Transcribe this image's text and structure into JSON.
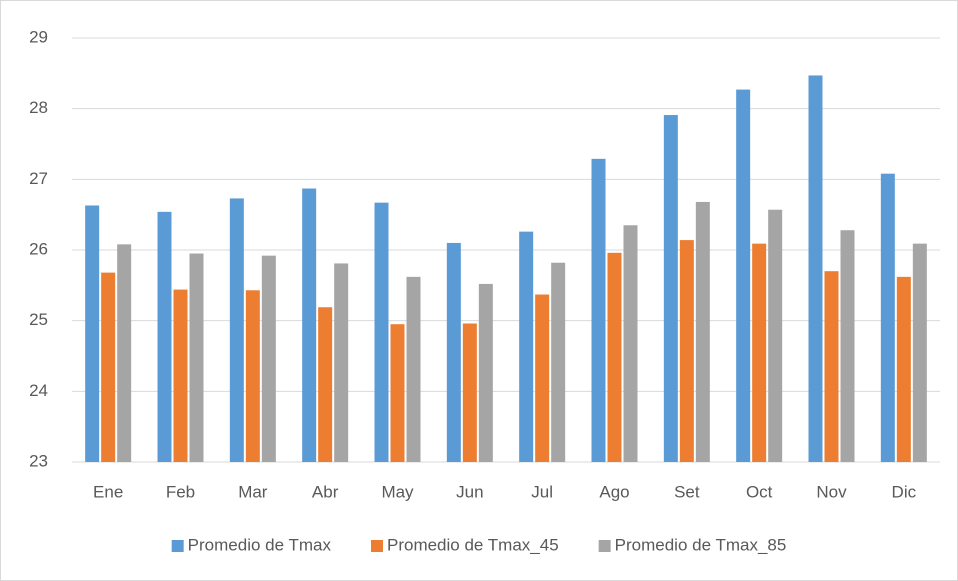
{
  "chart_data": {
    "type": "bar",
    "categories": [
      "Ene",
      "Feb",
      "Mar",
      "Abr",
      "May",
      "Jun",
      "Jul",
      "Ago",
      "Set",
      "Oct",
      "Nov",
      "Dic"
    ],
    "series": [
      {
        "name": "Promedio de Tmax",
        "color": "#5b9bd5",
        "values": [
          26.63,
          26.54,
          26.73,
          26.87,
          26.67,
          26.1,
          26.26,
          27.29,
          27.91,
          28.27,
          28.47,
          27.08
        ]
      },
      {
        "name": "Promedio de Tmax_45",
        "color": "#ed7d31",
        "values": [
          25.68,
          25.44,
          25.43,
          25.19,
          24.95,
          24.96,
          25.37,
          25.96,
          26.14,
          26.09,
          25.7,
          25.62
        ]
      },
      {
        "name": "Promedio de Tmax_85",
        "color": "#a5a5a5",
        "values": [
          26.08,
          25.95,
          25.92,
          25.81,
          25.62,
          25.52,
          25.82,
          26.35,
          26.68,
          26.57,
          26.28,
          26.09
        ]
      }
    ],
    "ylim": [
      23,
      29
    ],
    "yticks": [
      23,
      24,
      25,
      26,
      27,
      28,
      29
    ],
    "grid": true,
    "legend": "bottom"
  }
}
